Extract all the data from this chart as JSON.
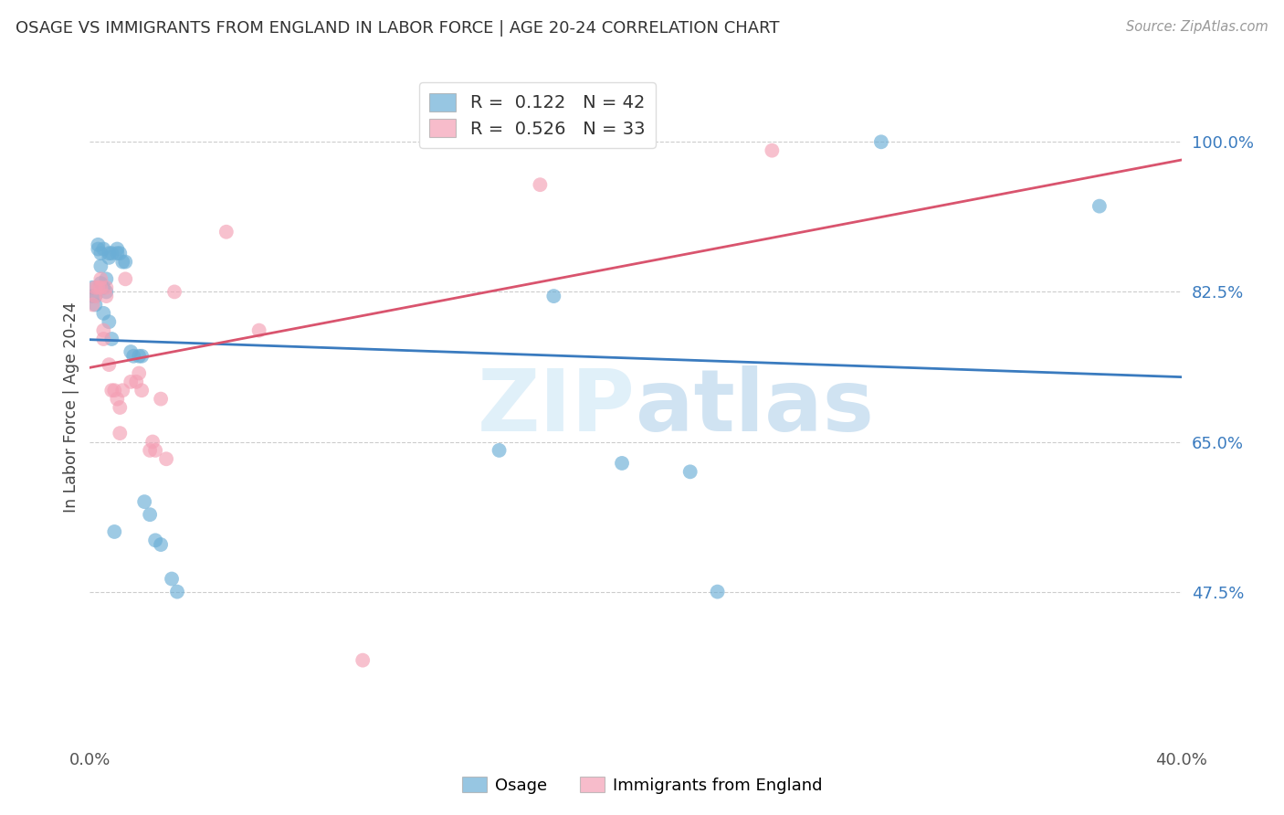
{
  "title": "OSAGE VS IMMIGRANTS FROM ENGLAND IN LABOR FORCE | AGE 20-24 CORRELATION CHART",
  "source": "Source: ZipAtlas.com",
  "ylabel": "In Labor Force | Age 20-24",
  "xlim": [
    0.0,
    0.4
  ],
  "ylim": [
    0.3,
    1.08
  ],
  "xtick_pos": [
    0.0,
    0.05,
    0.1,
    0.15,
    0.2,
    0.25,
    0.3,
    0.35,
    0.4
  ],
  "xtick_labels": [
    "0.0%",
    "",
    "",
    "",
    "",
    "",
    "",
    "",
    "40.0%"
  ],
  "ytick_positions": [
    0.475,
    0.65,
    0.825,
    1.0
  ],
  "ytick_labels": [
    "47.5%",
    "65.0%",
    "82.5%",
    "100.0%"
  ],
  "r_osage": 0.122,
  "n_osage": 42,
  "r_england": 0.526,
  "n_england": 33,
  "osage_color": "#6baed6",
  "england_color": "#f4a0b5",
  "osage_line_color": "#3a7bbf",
  "england_line_color": "#d9546e",
  "background_color": "#ffffff",
  "watermark_zip": "ZIP",
  "watermark_atlas": "atlas",
  "osage_x": [
    0.001,
    0.001,
    0.002,
    0.002,
    0.003,
    0.003,
    0.004,
    0.004,
    0.004,
    0.005,
    0.005,
    0.006,
    0.006,
    0.007,
    0.007,
    0.008,
    0.009,
    0.01,
    0.01,
    0.011,
    0.012,
    0.013,
    0.015,
    0.016,
    0.018,
    0.019,
    0.02,
    0.022,
    0.024,
    0.026,
    0.03,
    0.032,
    0.15,
    0.17,
    0.195,
    0.22,
    0.23,
    0.29,
    0.37,
    0.007,
    0.008,
    0.005
  ],
  "osage_y": [
    0.82,
    0.83,
    0.81,
    0.82,
    0.88,
    0.875,
    0.855,
    0.87,
    0.835,
    0.875,
    0.83,
    0.825,
    0.84,
    0.865,
    0.87,
    0.87,
    0.545,
    0.875,
    0.87,
    0.87,
    0.86,
    0.86,
    0.755,
    0.75,
    0.75,
    0.75,
    0.58,
    0.565,
    0.535,
    0.53,
    0.49,
    0.475,
    0.64,
    0.82,
    0.625,
    0.615,
    0.475,
    1.0,
    0.925,
    0.79,
    0.77,
    0.8
  ],
  "england_x": [
    0.001,
    0.002,
    0.002,
    0.003,
    0.004,
    0.004,
    0.005,
    0.005,
    0.006,
    0.006,
    0.007,
    0.008,
    0.009,
    0.01,
    0.011,
    0.011,
    0.012,
    0.013,
    0.015,
    0.017,
    0.018,
    0.019,
    0.022,
    0.023,
    0.024,
    0.026,
    0.028,
    0.031,
    0.05,
    0.062,
    0.1,
    0.165,
    0.25
  ],
  "england_y": [
    0.81,
    0.82,
    0.83,
    0.83,
    0.83,
    0.84,
    0.77,
    0.78,
    0.82,
    0.83,
    0.74,
    0.71,
    0.71,
    0.7,
    0.69,
    0.66,
    0.71,
    0.84,
    0.72,
    0.72,
    0.73,
    0.71,
    0.64,
    0.65,
    0.64,
    0.7,
    0.63,
    0.825,
    0.895,
    0.78,
    0.395,
    0.95,
    0.99
  ]
}
